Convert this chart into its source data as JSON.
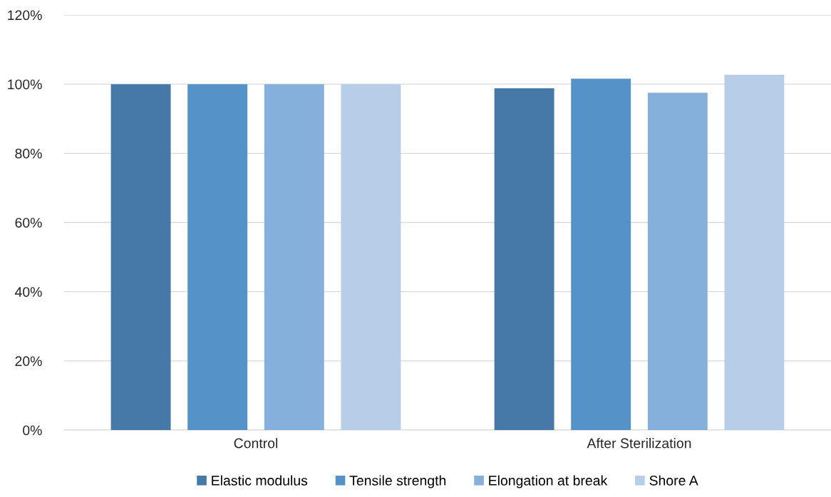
{
  "chart_data": {
    "type": "bar",
    "categories": [
      "Control",
      "After Sterilization"
    ],
    "series": [
      {
        "name": "Elastic modulus",
        "color": "#4679a8",
        "values": [
          100,
          98.8
        ]
      },
      {
        "name": "Tensile strength",
        "color": "#5592c8",
        "values": [
          100,
          101.6
        ]
      },
      {
        "name": "Elongation at break",
        "color": "#86b0dc",
        "values": [
          100,
          97.5
        ]
      },
      {
        "name": "Shore A",
        "color": "#b8cde8",
        "values": [
          100,
          102.7
        ]
      }
    ],
    "ylim": [
      0,
      120
    ],
    "yticks": [
      {
        "value": 0,
        "label": "0%"
      },
      {
        "value": 20,
        "label": "20%"
      },
      {
        "value": 40,
        "label": "40%"
      },
      {
        "value": 60,
        "label": "60%"
      },
      {
        "value": 80,
        "label": "80%"
      },
      {
        "value": 100,
        "label": "100%"
      },
      {
        "value": 120,
        "label": "120%"
      }
    ],
    "grid": "y",
    "legend": "bottom"
  }
}
